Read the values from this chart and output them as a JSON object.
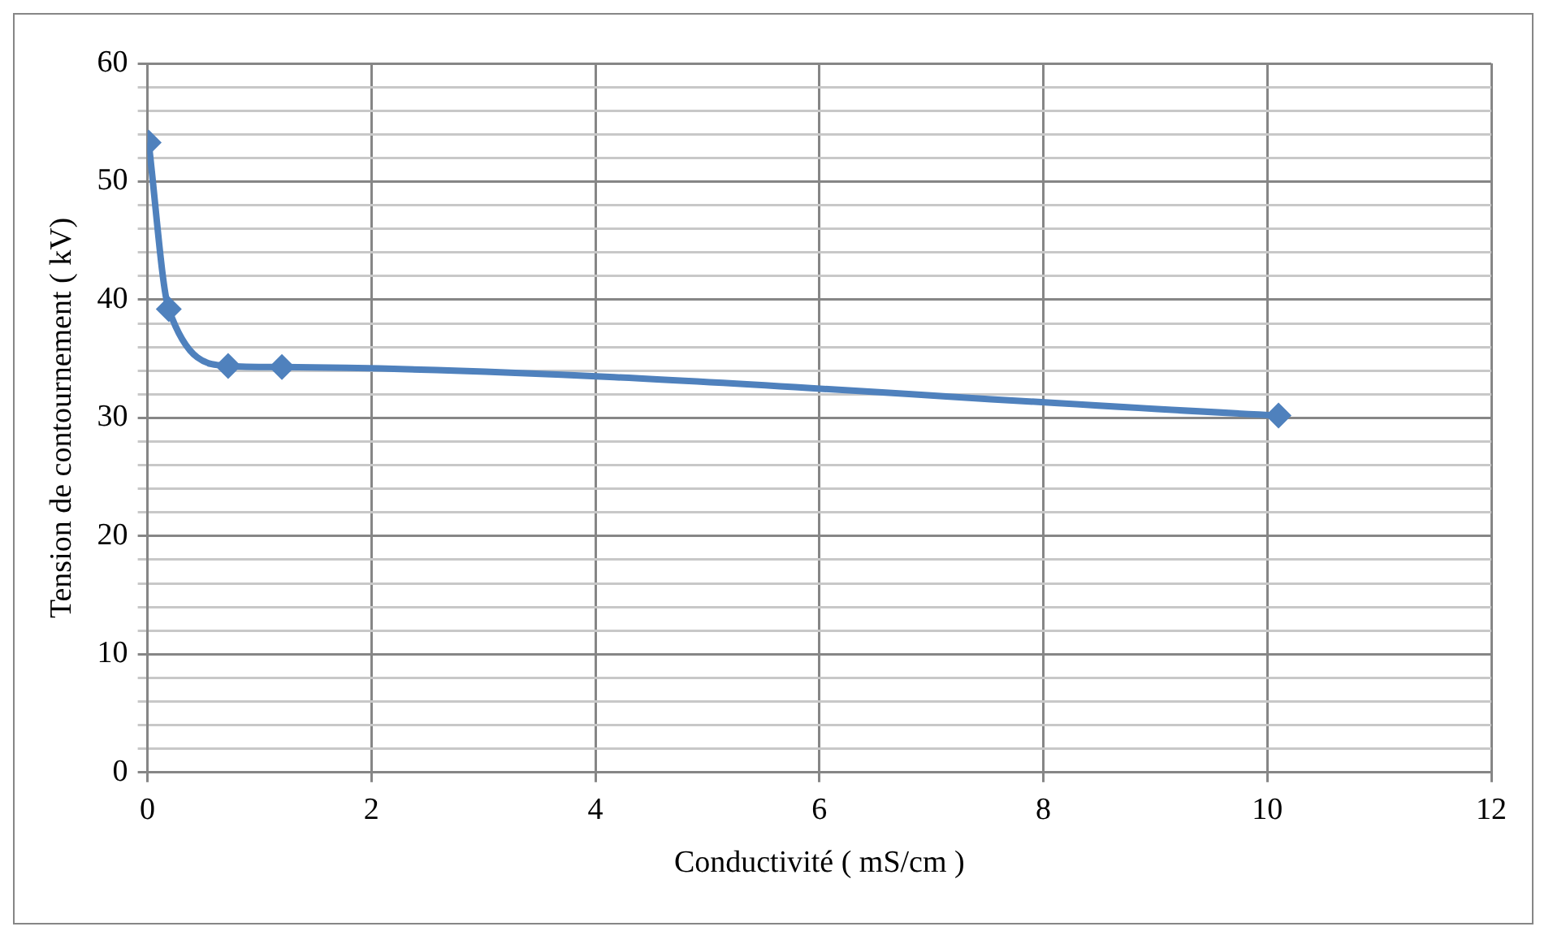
{
  "chart_data": {
    "type": "line",
    "xlabel": "Conductivité ( mS/cm )",
    "ylabel": "Tension de contournement ( kV)",
    "x": [
      0.01,
      0.19,
      0.72,
      1.2,
      10.1
    ],
    "series": [
      {
        "color": "#4f81bd",
        "values": [
          53.3,
          39.2,
          34.4,
          34.3,
          30.2
        ]
      }
    ],
    "xlim": [
      0,
      12
    ],
    "xticks": [
      0,
      2,
      4,
      6,
      8,
      10,
      12
    ],
    "ylim": [
      0,
      60
    ],
    "yticks": [
      0,
      {
        "value": 2,
        "label": null
      },
      {
        "value": 4,
        "label": null
      },
      {
        "value": 6,
        "label": null
      },
      {
        "value": 8,
        "label": null
      },
      10,
      {
        "value": 12,
        "label": null
      },
      {
        "value": 14,
        "label": null
      },
      {
        "value": 16,
        "label": null
      },
      {
        "value": 18,
        "label": null
      },
      20,
      {
        "value": 22,
        "label": null
      },
      {
        "value": 24,
        "label": null
      },
      {
        "value": 26,
        "label": null
      },
      {
        "value": 28,
        "label": null
      },
      30,
      {
        "value": 32,
        "label": null
      },
      {
        "value": 34,
        "label": null
      },
      {
        "value": 36,
        "label": null
      },
      {
        "value": 38,
        "label": null
      },
      40,
      {
        "value": 42,
        "label": null
      },
      {
        "value": 44,
        "label": null
      },
      {
        "value": 46,
        "label": null
      },
      {
        "value": 48,
        "label": null
      },
      50,
      {
        "value": 52,
        "label": null
      },
      {
        "value": 54,
        "label": null
      },
      {
        "value": 56,
        "label": null
      },
      {
        "value": 58,
        "label": null
      },
      60
    ],
    "grid": true,
    "marker": "diamond",
    "line_style": "solid",
    "legend": false
  }
}
